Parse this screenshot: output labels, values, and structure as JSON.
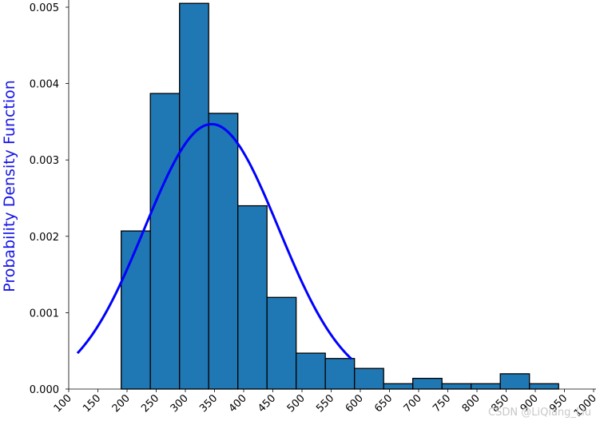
{
  "chart_data": {
    "type": "bar",
    "title": "",
    "xlabel": "",
    "ylabel": "Probability Density Function",
    "xlim": [
      100,
      1000
    ],
    "ylim": [
      0,
      0.0051
    ],
    "x_ticks": [
      100,
      150,
      200,
      250,
      300,
      350,
      400,
      450,
      500,
      550,
      600,
      650,
      700,
      750,
      800,
      850,
      900,
      950,
      1000
    ],
    "x_tick_labels": [
      "100",
      "150",
      "200",
      "250",
      "300",
      "350",
      "400",
      "450",
      "500",
      "550",
      "600",
      "650",
      "700",
      "750",
      "800",
      "850",
      "900",
      "950",
      "1000"
    ],
    "y_ticks": [
      0,
      0.001,
      0.002,
      0.003,
      0.004,
      0.005
    ],
    "y_tick_labels": [
      "0.000",
      "0.001",
      "0.002",
      "0.003",
      "0.004",
      "0.005"
    ],
    "bin_edges": [
      190,
      240,
      290,
      340,
      390,
      440,
      490,
      540,
      590,
      640,
      690,
      740,
      790,
      840,
      890,
      940
    ],
    "values": [
      0.00207,
      0.00387,
      0.00505,
      0.00361,
      0.0024,
      0.0012,
      0.00047,
      0.0004,
      0.00027,
      7e-05,
      0.00014,
      7e-05,
      7e-05,
      0.0002,
      7e-05
    ],
    "curve": {
      "type": "normal",
      "mean": 345,
      "sd": 115,
      "x_range": [
        115,
        585
      ]
    },
    "colors": {
      "bar_fill": "#1f77b4",
      "bar_edge": "#000000",
      "curve": "#0000ff"
    },
    "grid": false,
    "legend": "none"
  },
  "watermark": "CSDN @LiQiang_Liu"
}
